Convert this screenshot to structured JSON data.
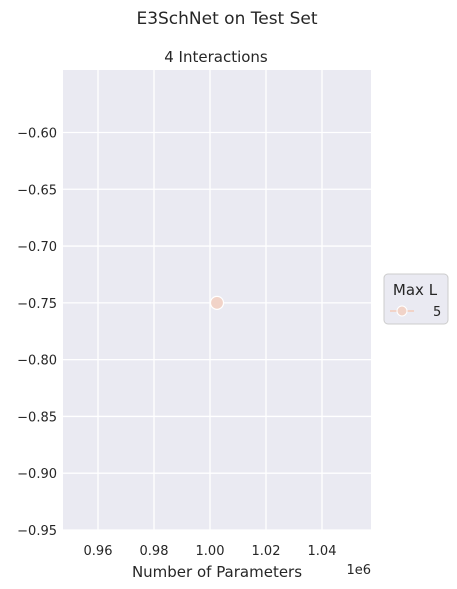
{
  "chart_data": {
    "type": "scatter",
    "title": "E3SchNet on Test Set",
    "subplot_title": "4 Interactions",
    "xlabel": "Number of Parameters",
    "x_offset_label": "1e6",
    "ylabel": "",
    "xlim": [
      0.9475,
      1.0575
    ],
    "ylim": [
      -0.95,
      -0.545
    ],
    "x_ticks": [
      0.96,
      0.98,
      1.0,
      1.02,
      1.04
    ],
    "x_tick_labels": [
      "0.96",
      "0.98",
      "1.00",
      "1.02",
      "1.04"
    ],
    "y_ticks": [
      -0.6,
      -0.65,
      -0.7,
      -0.75,
      -0.8,
      -0.85,
      -0.9,
      -0.95
    ],
    "y_tick_labels": [
      "−0.60",
      "−0.65",
      "−0.70",
      "−0.75",
      "−0.80",
      "−0.85",
      "−0.90",
      "−0.95"
    ],
    "grid": true,
    "legend": {
      "title": "Max L",
      "placement": "right",
      "entries": [
        {
          "label": "5",
          "color": "#f1d3c8"
        }
      ]
    },
    "series": [
      {
        "name": "5",
        "color": "#f1d3c8",
        "points": [
          {
            "x": 1.0025,
            "y": -0.75
          }
        ]
      }
    ]
  },
  "colors": {
    "plot_background": "#eaeaf2",
    "grid": "#ffffff",
    "marker": "#f1d3c8"
  }
}
